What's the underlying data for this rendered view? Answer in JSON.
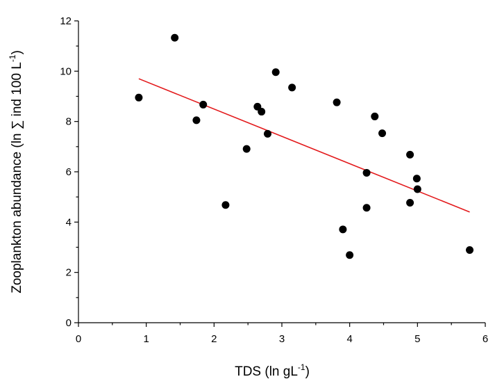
{
  "chart_data": {
    "type": "scatter",
    "title": "",
    "xlabel": {
      "main": "TDS (ln gL",
      "sup": "-1",
      "end": ")"
    },
    "ylabel": {
      "main": "Zooplankton abundance (ln ∑ ind 100 L",
      "sup": "-1",
      "end": ")"
    },
    "xlim": [
      0,
      6
    ],
    "ylim": [
      0,
      12
    ],
    "x_ticks": [
      0,
      1,
      2,
      3,
      4,
      5,
      6
    ],
    "y_ticks": [
      0,
      2,
      4,
      6,
      8,
      10,
      12
    ],
    "grid": false,
    "legend": "none",
    "series": [
      {
        "name": "observations",
        "color": "#000000",
        "points": [
          [
            0.89,
            8.95
          ],
          [
            1.42,
            11.33
          ],
          [
            1.74,
            8.05
          ],
          [
            1.84,
            8.67
          ],
          [
            2.17,
            4.68
          ],
          [
            2.48,
            6.91
          ],
          [
            2.64,
            8.59
          ],
          [
            2.7,
            8.39
          ],
          [
            2.79,
            7.51
          ],
          [
            2.91,
            9.96
          ],
          [
            3.15,
            9.35
          ],
          [
            3.81,
            8.76
          ],
          [
            3.9,
            3.71
          ],
          [
            4.0,
            2.69
          ],
          [
            4.25,
            5.96
          ],
          [
            4.25,
            4.57
          ],
          [
            4.37,
            8.2
          ],
          [
            4.48,
            7.53
          ],
          [
            4.89,
            6.68
          ],
          [
            4.89,
            4.77
          ],
          [
            4.99,
            5.73
          ],
          [
            5.0,
            5.31
          ],
          [
            5.77,
            2.89
          ]
        ]
      }
    ],
    "fit_line": {
      "name": "linear fit",
      "color": "#e31a1c",
      "x": [
        0.89,
        5.77
      ],
      "y": [
        9.7,
        4.4
      ]
    }
  }
}
